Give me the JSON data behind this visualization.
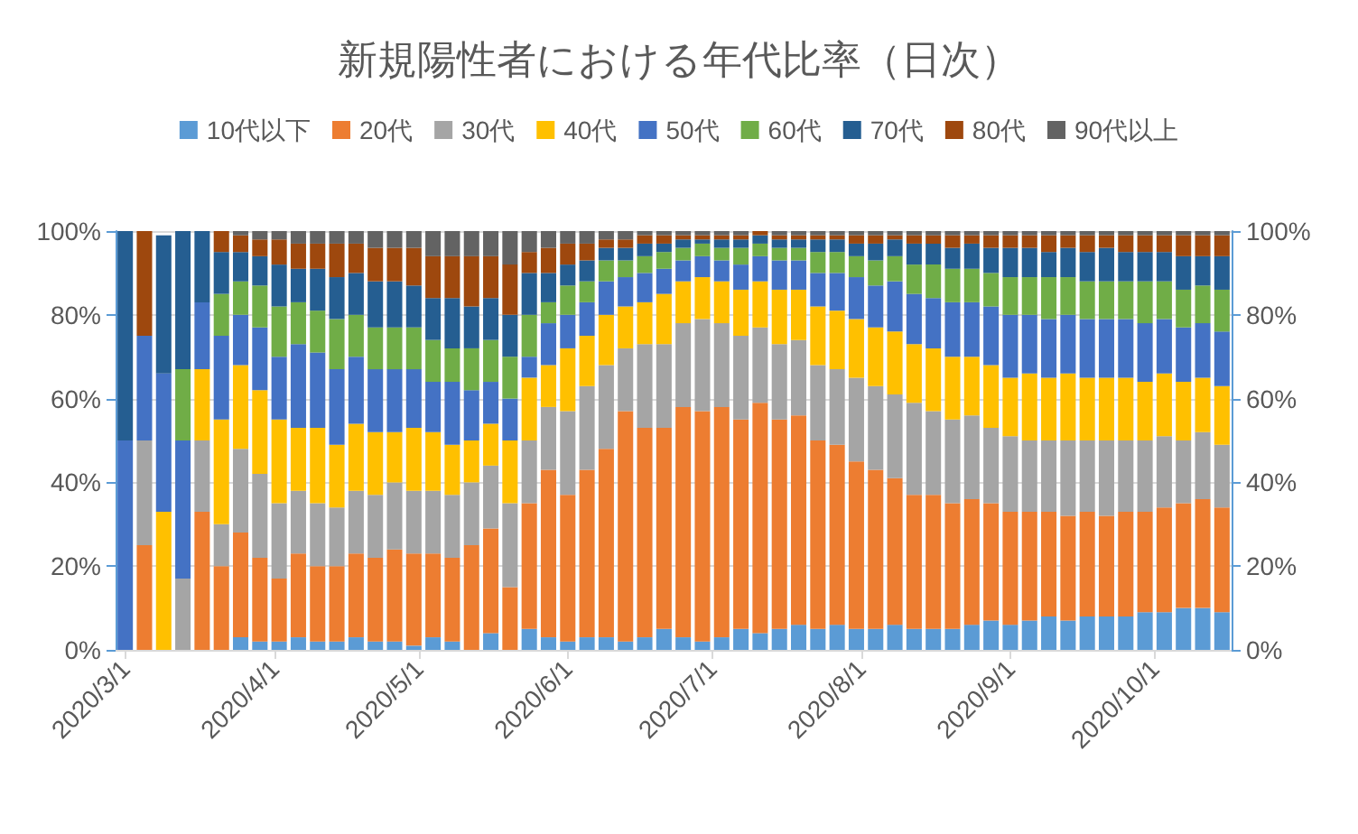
{
  "chart_data": {
    "type": "bar",
    "stacked": true,
    "title": "新規陽性者における年代比率（日次）",
    "x": [
      "2020-03-01",
      "2020-03-05",
      "2020-03-09",
      "2020-03-13",
      "2020-03-17",
      "2020-03-21",
      "2020-03-25",
      "2020-03-29",
      "2020-04-02",
      "2020-04-06",
      "2020-04-10",
      "2020-04-14",
      "2020-04-18",
      "2020-04-22",
      "2020-04-26",
      "2020-04-30",
      "2020-05-04",
      "2020-05-08",
      "2020-05-12",
      "2020-05-16",
      "2020-05-20",
      "2020-05-24",
      "2020-05-28",
      "2020-06-01",
      "2020-06-05",
      "2020-06-09",
      "2020-06-13",
      "2020-06-17",
      "2020-06-21",
      "2020-06-25",
      "2020-06-29",
      "2020-07-03",
      "2020-07-07",
      "2020-07-11",
      "2020-07-15",
      "2020-07-19",
      "2020-07-23",
      "2020-07-27",
      "2020-07-31",
      "2020-08-04",
      "2020-08-08",
      "2020-08-12",
      "2020-08-16",
      "2020-08-20",
      "2020-08-24",
      "2020-08-28",
      "2020-09-01",
      "2020-09-05",
      "2020-09-09",
      "2020-09-13",
      "2020-09-17",
      "2020-09-21",
      "2020-09-25",
      "2020-09-29",
      "2020-10-03",
      "2020-10-07",
      "2020-10-11",
      "2020-10-15"
    ],
    "series": [
      {
        "name": "10代以下",
        "color": "#5b9bd5",
        "values": [
          0,
          0,
          0,
          0,
          0,
          0,
          3,
          2,
          2,
          3,
          2,
          2,
          3,
          2,
          2,
          1,
          3,
          2,
          0,
          4,
          0,
          5,
          3,
          2,
          3,
          3,
          2,
          3,
          5,
          3,
          2,
          3,
          5,
          4,
          5,
          6,
          5,
          6,
          5,
          5,
          6,
          5,
          5,
          5,
          6,
          7,
          6,
          7,
          8,
          7,
          8,
          8,
          8,
          9,
          9,
          10,
          10,
          9
        ]
      },
      {
        "name": "20代",
        "color": "#ed7d31",
        "values": [
          0,
          25,
          0,
          0,
          33,
          20,
          25,
          20,
          15,
          20,
          18,
          18,
          20,
          20,
          22,
          22,
          20,
          20,
          25,
          25,
          15,
          30,
          40,
          35,
          40,
          45,
          55,
          50,
          48,
          55,
          55,
          55,
          50,
          55,
          50,
          50,
          45,
          43,
          40,
          38,
          35,
          32,
          32,
          30,
          30,
          28,
          27,
          26,
          25,
          25,
          25,
          24,
          25,
          24,
          25,
          25,
          26,
          25
        ]
      },
      {
        "name": "30代",
        "color": "#a5a5a5",
        "values": [
          0,
          25,
          0,
          17,
          17,
          10,
          20,
          20,
          18,
          15,
          15,
          14,
          15,
          15,
          16,
          15,
          15,
          15,
          15,
          15,
          20,
          15,
          15,
          20,
          20,
          20,
          15,
          20,
          20,
          20,
          22,
          20,
          20,
          18,
          18,
          18,
          18,
          18,
          20,
          20,
          20,
          22,
          20,
          20,
          20,
          18,
          18,
          17,
          17,
          18,
          17,
          18,
          17,
          17,
          17,
          15,
          16,
          15
        ]
      },
      {
        "name": "40代",
        "color": "#ffc000",
        "values": [
          0,
          0,
          33,
          0,
          17,
          25,
          20,
          20,
          20,
          15,
          18,
          15,
          16,
          15,
          12,
          15,
          14,
          12,
          10,
          10,
          15,
          15,
          10,
          15,
          12,
          12,
          10,
          10,
          12,
          10,
          10,
          10,
          11,
          11,
          13,
          12,
          14,
          14,
          14,
          14,
          15,
          14,
          15,
          15,
          14,
          15,
          14,
          16,
          15,
          16,
          15,
          15,
          15,
          14,
          15,
          14,
          13,
          14
        ]
      },
      {
        "name": "50代",
        "color": "#4472c4",
        "values": [
          50,
          25,
          33,
          33,
          16,
          20,
          12,
          15,
          15,
          20,
          18,
          18,
          16,
          15,
          15,
          14,
          12,
          15,
          12,
          10,
          10,
          5,
          10,
          8,
          8,
          8,
          7,
          7,
          6,
          5,
          5,
          5,
          6,
          6,
          7,
          7,
          8,
          9,
          10,
          10,
          12,
          12,
          12,
          13,
          13,
          14,
          15,
          14,
          14,
          14,
          14,
          14,
          14,
          14,
          13,
          13,
          13,
          13
        ]
      },
      {
        "name": "60代",
        "color": "#70ad47",
        "values": [
          0,
          0,
          0,
          17,
          0,
          10,
          8,
          10,
          12,
          10,
          10,
          12,
          10,
          10,
          10,
          10,
          10,
          8,
          10,
          10,
          10,
          10,
          5,
          7,
          5,
          5,
          4,
          4,
          4,
          3,
          3,
          3,
          4,
          3,
          3,
          3,
          5,
          5,
          5,
          6,
          6,
          7,
          8,
          8,
          8,
          8,
          9,
          9,
          10,
          9,
          9,
          9,
          9,
          10,
          9,
          9,
          9,
          10
        ]
      },
      {
        "name": "70代",
        "color": "#255e91",
        "values": [
          50,
          0,
          33,
          33,
          17,
          10,
          7,
          7,
          10,
          8,
          10,
          10,
          10,
          11,
          11,
          10,
          10,
          12,
          10,
          10,
          10,
          10,
          7,
          5,
          5,
          3,
          3,
          3,
          2,
          2,
          1,
          2,
          2,
          2,
          2,
          2,
          3,
          3,
          3,
          4,
          4,
          5,
          5,
          5,
          6,
          6,
          7,
          7,
          6,
          7,
          7,
          8,
          7,
          7,
          7,
          8,
          7,
          8
        ]
      },
      {
        "name": "80代",
        "color": "#9e480e",
        "values": [
          0,
          25,
          0,
          0,
          0,
          5,
          4,
          4,
          6,
          6,
          6,
          8,
          7,
          8,
          8,
          9,
          10,
          10,
          12,
          10,
          12,
          5,
          6,
          5,
          4,
          2,
          2,
          2,
          2,
          1,
          1,
          1,
          1,
          1,
          1,
          1,
          1,
          1,
          2,
          2,
          1,
          2,
          2,
          3,
          2,
          3,
          3,
          3,
          4,
          3,
          4,
          3,
          4,
          4,
          4,
          5,
          5,
          5
        ]
      },
      {
        "name": "90代以上",
        "color": "#636363",
        "values": [
          0,
          0,
          0,
          0,
          0,
          0,
          1,
          2,
          2,
          3,
          3,
          3,
          3,
          4,
          4,
          4,
          6,
          6,
          6,
          6,
          8,
          5,
          4,
          3,
          3,
          2,
          2,
          1,
          1,
          1,
          1,
          1,
          1,
          0,
          1,
          1,
          1,
          1,
          1,
          1,
          1,
          1,
          1,
          1,
          1,
          1,
          1,
          1,
          1,
          1,
          1,
          1,
          1,
          1,
          1,
          1,
          1,
          1
        ]
      }
    ],
    "xlim": [
      "2020-02-28",
      "2020-10-17"
    ],
    "xticks": [
      {
        "value": "2020-03-01",
        "label": "2020/3/1"
      },
      {
        "value": "2020-04-01",
        "label": "2020/4/1"
      },
      {
        "value": "2020-05-01",
        "label": "2020/5/1"
      },
      {
        "value": "2020-06-01",
        "label": "2020/6/1"
      },
      {
        "value": "2020-07-01",
        "label": "2020/7/1"
      },
      {
        "value": "2020-08-01",
        "label": "2020/8/1"
      },
      {
        "value": "2020-09-01",
        "label": "2020/9/1"
      },
      {
        "value": "2020-10-01",
        "label": "2020/10/1"
      }
    ],
    "ylim": [
      0,
      100
    ],
    "yticks": [
      {
        "value": 0,
        "label": "0%"
      },
      {
        "value": 20,
        "label": "20%"
      },
      {
        "value": 40,
        "label": "40%"
      },
      {
        "value": 60,
        "label": "60%"
      },
      {
        "value": 80,
        "label": "80%"
      },
      {
        "value": 100,
        "label": "100%"
      }
    ],
    "y2lim": [
      0,
      100
    ],
    "y2ticks": [
      {
        "value": 0,
        "label": "0%"
      },
      {
        "value": 20,
        "label": "20%"
      },
      {
        "value": 40,
        "label": "40%"
      },
      {
        "value": 60,
        "label": "60%"
      },
      {
        "value": 80,
        "label": "80%"
      },
      {
        "value": 100,
        "label": "100%"
      }
    ],
    "grid": "y",
    "legend": "top"
  }
}
